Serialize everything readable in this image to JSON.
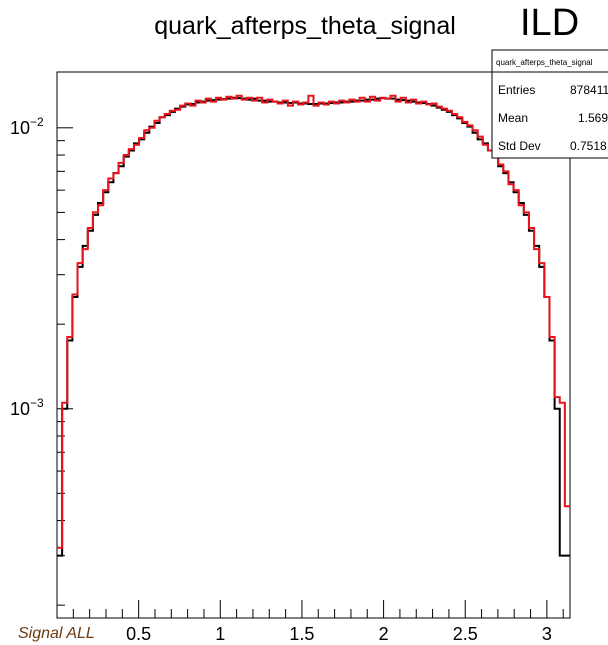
{
  "title": "quark_afterps_theta_signal",
  "ild_label": "ILD",
  "footer_label": "Signal ALL",
  "stats": {
    "name": "quark_afterps_theta_signal",
    "rows": [
      {
        "label": "Entries",
        "value": "878411"
      },
      {
        "label": "Mean",
        "value": "1.569"
      },
      {
        "label": "Std Dev",
        "value": "0.7518"
      }
    ]
  },
  "colors": {
    "series_black": "#000000",
    "series_red": "#e8141b",
    "footer": "#6b3a10"
  },
  "chart_data": {
    "type": "histogram",
    "title": "quark_afterps_theta_signal",
    "xlabel": "",
    "ylabel": "",
    "xlim": [
      0,
      3.1416
    ],
    "ylim": [
      0.00018,
      0.0158
    ],
    "yscale": "log",
    "grid": false,
    "legend": "none",
    "x_ticks": [
      "0.5",
      "1",
      "1.5",
      "2",
      "2.5",
      "3"
    ],
    "x_tick_values": [
      0.5,
      1,
      1.5,
      2,
      2.5,
      3
    ],
    "y_ticks": [
      {
        "value": 0.01,
        "base": "10",
        "exp": "−2"
      },
      {
        "value": 0.001,
        "base": "10",
        "exp": "−3"
      }
    ],
    "bin_edges": {
      "start": 0,
      "end": 3.1416,
      "nbins": 100
    },
    "series": [
      {
        "color": "black",
        "values": [
          0.0003,
          0.001,
          0.00175,
          0.0025,
          0.0032,
          0.0038,
          0.0043,
          0.0049,
          0.0054,
          0.0059,
          0.0064,
          0.0069,
          0.0073,
          0.0079,
          0.0083,
          0.0088,
          0.0091,
          0.0096,
          0.0101,
          0.0104,
          0.0109,
          0.0111,
          0.0114,
          0.0117,
          0.0119,
          0.0121,
          0.01215,
          0.0123,
          0.0124,
          0.0125,
          0.01255,
          0.0126,
          0.01265,
          0.0127,
          0.0128,
          0.01275,
          0.0127,
          0.0126,
          0.0127,
          0.0125,
          0.0125,
          0.0124,
          0.0124,
          0.0123,
          0.0123,
          0.01225,
          0.0123,
          0.0122,
          0.0122,
          0.01215,
          0.01215,
          0.0122,
          0.0122,
          0.01225,
          0.0123,
          0.0123,
          0.0124,
          0.0124,
          0.0125,
          0.0125,
          0.0126,
          0.0126,
          0.0127,
          0.01275,
          0.0127,
          0.0127,
          0.0126,
          0.01255,
          0.0125,
          0.0124,
          0.0123,
          0.01225,
          0.01215,
          0.012,
          0.0118,
          0.0116,
          0.0114,
          0.0111,
          0.0108,
          0.0104,
          0.0101,
          0.0096,
          0.0091,
          0.0088,
          0.0083,
          0.0079,
          0.0073,
          0.0069,
          0.0064,
          0.0059,
          0.0054,
          0.0049,
          0.0043,
          0.0038,
          0.0032,
          0.0025,
          0.00175,
          0.001,
          0.0003,
          0.0003
        ]
      },
      {
        "color": "red",
        "values": [
          0.00032,
          0.00105,
          0.0018,
          0.00255,
          0.0033,
          0.0037,
          0.0044,
          0.005,
          0.0053,
          0.006,
          0.0066,
          0.0069,
          0.0075,
          0.008,
          0.0084,
          0.0087,
          0.0092,
          0.0098,
          0.01,
          0.0106,
          0.0109,
          0.0112,
          0.0115,
          0.0116,
          0.012,
          0.0122,
          0.012,
          0.0125,
          0.0123,
          0.0127,
          0.0124,
          0.0128,
          0.0126,
          0.0129,
          0.0127,
          0.013,
          0.0126,
          0.0128,
          0.0125,
          0.0128,
          0.0123,
          0.0126,
          0.0124,
          0.0122,
          0.0125,
          0.012,
          0.0124,
          0.0121,
          0.0123,
          0.013,
          0.012,
          0.0123,
          0.0121,
          0.0124,
          0.0122,
          0.0125,
          0.0123,
          0.0126,
          0.0124,
          0.0128,
          0.0124,
          0.0129,
          0.0125,
          0.0128,
          0.0127,
          0.013,
          0.0124,
          0.0128,
          0.0123,
          0.0126,
          0.0122,
          0.0124,
          0.0121,
          0.0122,
          0.0119,
          0.0117,
          0.0115,
          0.0112,
          0.0109,
          0.0105,
          0.0102,
          0.0098,
          0.0093,
          0.0087,
          0.0083,
          0.008,
          0.0074,
          0.007,
          0.0063,
          0.006,
          0.0053,
          0.005,
          0.0044,
          0.0037,
          0.0033,
          0.0025,
          0.0018,
          0.0011,
          0.00105,
          0.00045
        ]
      }
    ]
  }
}
